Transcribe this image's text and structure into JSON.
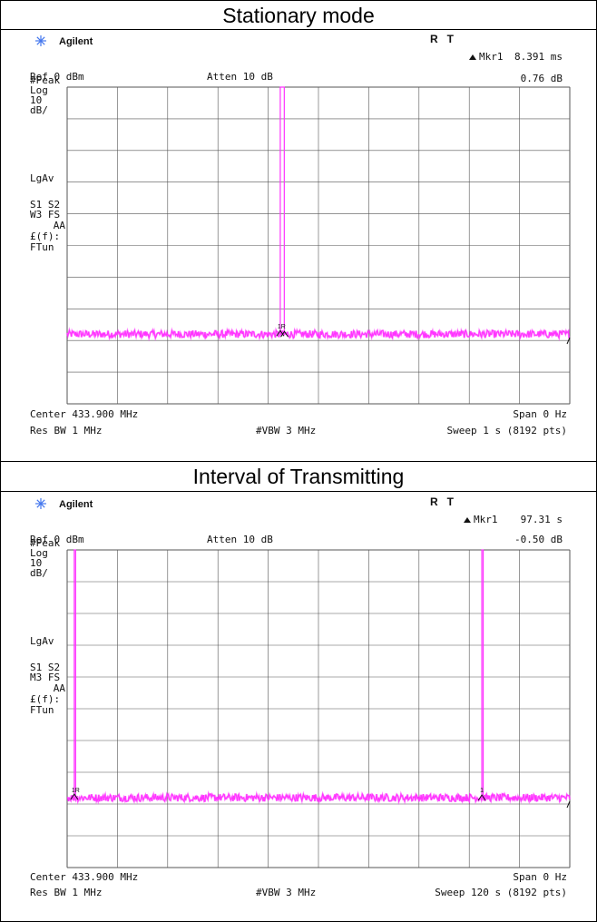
{
  "panels": [
    {
      "section_title": "Stationary mode",
      "brand": "Agilent",
      "status": "R   T",
      "marker_label": "Mkr1",
      "marker_time": "8.391 ms",
      "marker_level": "0.76 dB",
      "ref": "Ref 0 dBm",
      "atten": "Atten 10 dB",
      "side_labels": [
        "#Peak",
        "Log",
        "10",
        "dB/",
        "LgAv",
        "S1  S2",
        "W3  FS",
        "AA",
        "£(f):",
        "FTun"
      ],
      "center": "Center 433.900 MHz",
      "span": "Span 0 Hz",
      "res_bw": "Res BW 1 MHz",
      "vbw": "#VBW 3 MHz",
      "sweep": "Sweep 1 s (8192 pts)",
      "marker_tag": "1R",
      "trace_color": "#ff33ff"
    },
    {
      "section_title": "Interval of Transmitting",
      "brand": "Agilent",
      "status": "R   T",
      "marker_label": "Mkr1",
      "marker_time": "97.31 s",
      "marker_level": "-0.50 dB",
      "ref": "Ref 0 dBm",
      "atten": "Atten 10 dB",
      "side_labels": [
        "#Peak",
        "Log",
        "10",
        "dB/",
        "LgAv",
        "S1  S2",
        "M3  FS",
        "AA",
        "£(f):",
        "FTun"
      ],
      "center": "Center 433.900 MHz",
      "span": "Span 0 Hz",
      "res_bw": "Res BW 1 MHz",
      "vbw": "#VBW 3 MHz",
      "sweep": "Sweep 120 s (8192 pts)",
      "marker_tag": "1R",
      "marker_tag2": "1",
      "trace_color": "#ff33ff"
    }
  ],
  "chart_data": [
    {
      "type": "line",
      "title": "Stationary mode",
      "x_unit": "s",
      "xlim": [
        0,
        1
      ],
      "ylabel": "dBm",
      "ylim": [
        -100,
        0
      ],
      "grid": true,
      "noise_floor_dbm": -78,
      "pulses": [
        {
          "start_s": 0.424,
          "end_s": 0.432,
          "level_dbm": 0
        }
      ],
      "marker_delta": {
        "time_s": 0.008391,
        "level_db": 0.76
      }
    },
    {
      "type": "line",
      "title": "Interval of Transmitting",
      "x_unit": "s",
      "xlim": [
        0,
        120
      ],
      "ylabel": "dBm",
      "ylim": [
        -100,
        0
      ],
      "grid": true,
      "noise_floor_dbm": -78,
      "pulses": [
        {
          "start_s": 1.7,
          "end_s": 2.0,
          "level_dbm": 0
        },
        {
          "start_s": 99.0,
          "end_s": 99.3,
          "level_dbm": 0
        }
      ],
      "marker_delta": {
        "time_s": 97.31,
        "level_db": -0.5
      }
    }
  ]
}
